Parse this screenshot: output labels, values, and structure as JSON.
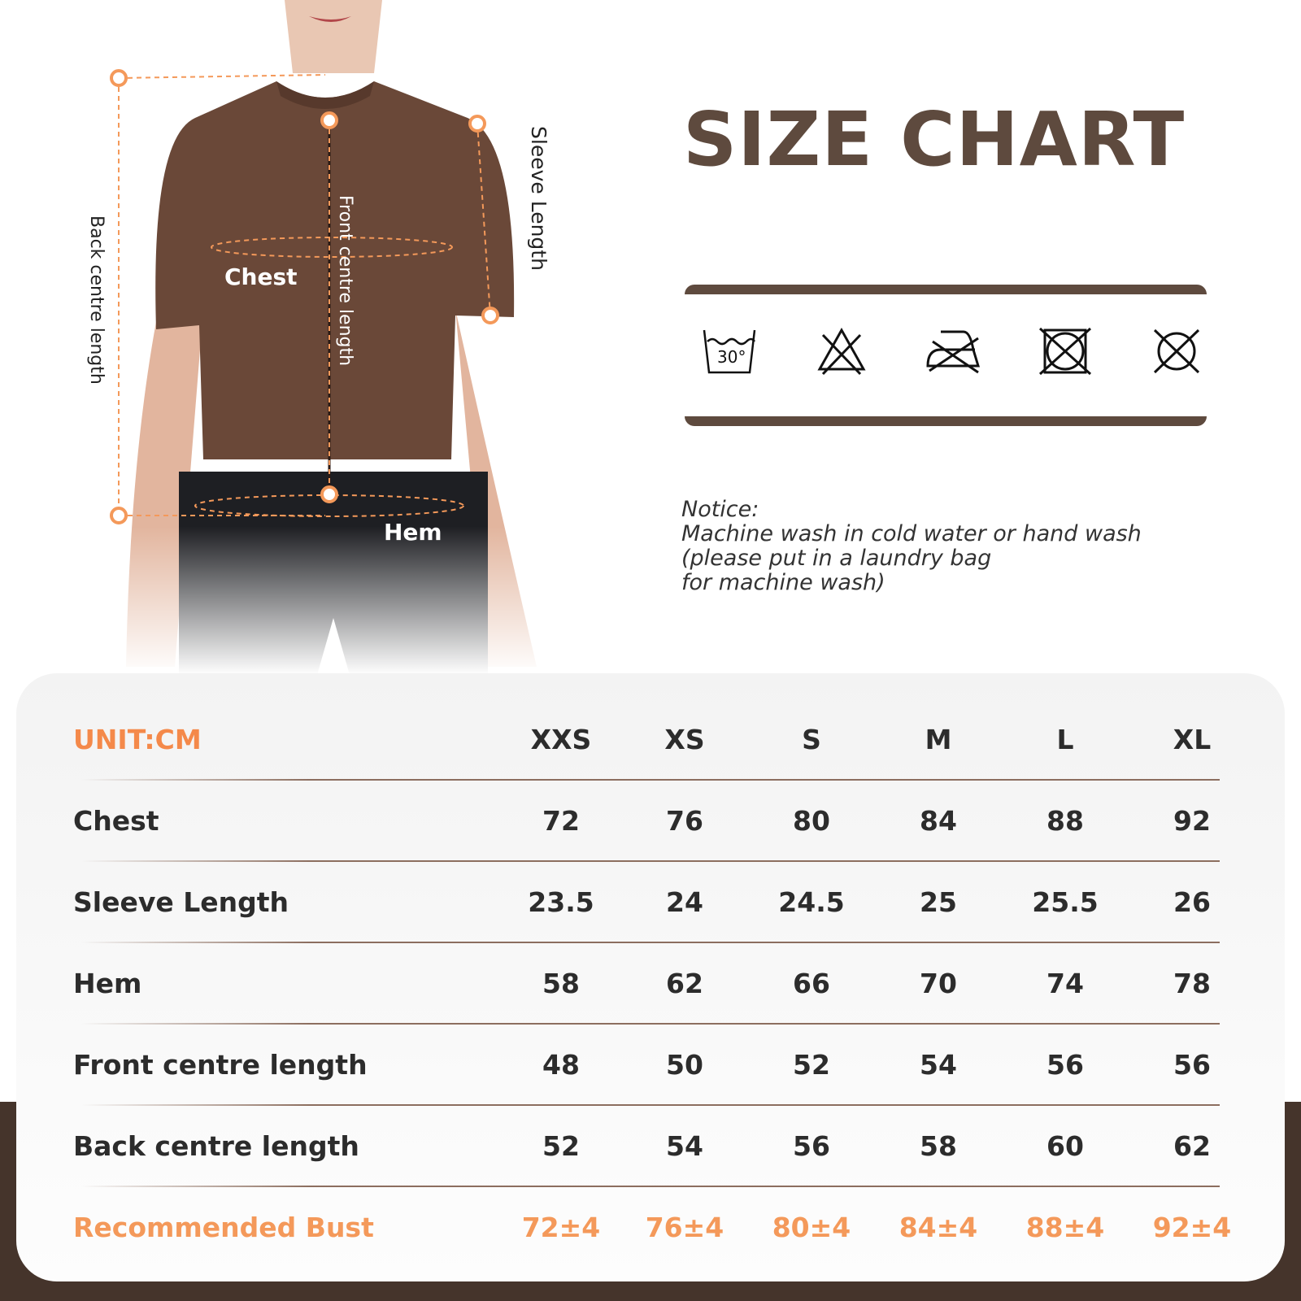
{
  "title": "SIZE CHART",
  "figure_labels": {
    "chest": "Chest",
    "hem": "Hem",
    "front_centre_length": "Front centre length",
    "sleeve_length": "Sleeve Length",
    "back_centre_length": "Back centre length"
  },
  "care_icons": [
    "wash-30-icon",
    "no-bleach-icon",
    "no-iron-icon",
    "no-tumble-dry-icon",
    "no-dry-clean-icon"
  ],
  "care_wash_temp": "30°",
  "notice": {
    "heading": "Notice:",
    "lines": [
      "Machine wash in cold water or hand wash",
      "(please put in a laundry bag",
      "for machine wash)"
    ]
  },
  "table": {
    "unit": "UNIT:CM",
    "sizes": [
      "XXS",
      "XS",
      "S",
      "M",
      "L",
      "XL"
    ],
    "rows": [
      {
        "label": "Chest",
        "values": [
          "72",
          "76",
          "80",
          "84",
          "88",
          "92"
        ]
      },
      {
        "label": "Sleeve Length",
        "values": [
          "23.5",
          "24",
          "24.5",
          "25",
          "25.5",
          "26"
        ]
      },
      {
        "label": "Hem",
        "values": [
          "58",
          "62",
          "66",
          "70",
          "74",
          "78"
        ]
      },
      {
        "label": "Front centre length",
        "values": [
          "48",
          "50",
          "52",
          "54",
          "56",
          "56"
        ]
      },
      {
        "label": "Back centre length",
        "values": [
          "52",
          "54",
          "56",
          "58",
          "60",
          "62"
        ]
      },
      {
        "label": "Recommended Bust",
        "values": [
          "72±4",
          "76±4",
          "80±4",
          "84±4",
          "88±4",
          "92±4"
        ]
      }
    ]
  },
  "colors": {
    "brand_brown": "#5e4a3e",
    "accent_orange": "#f4995a",
    "band": "#45342b"
  }
}
